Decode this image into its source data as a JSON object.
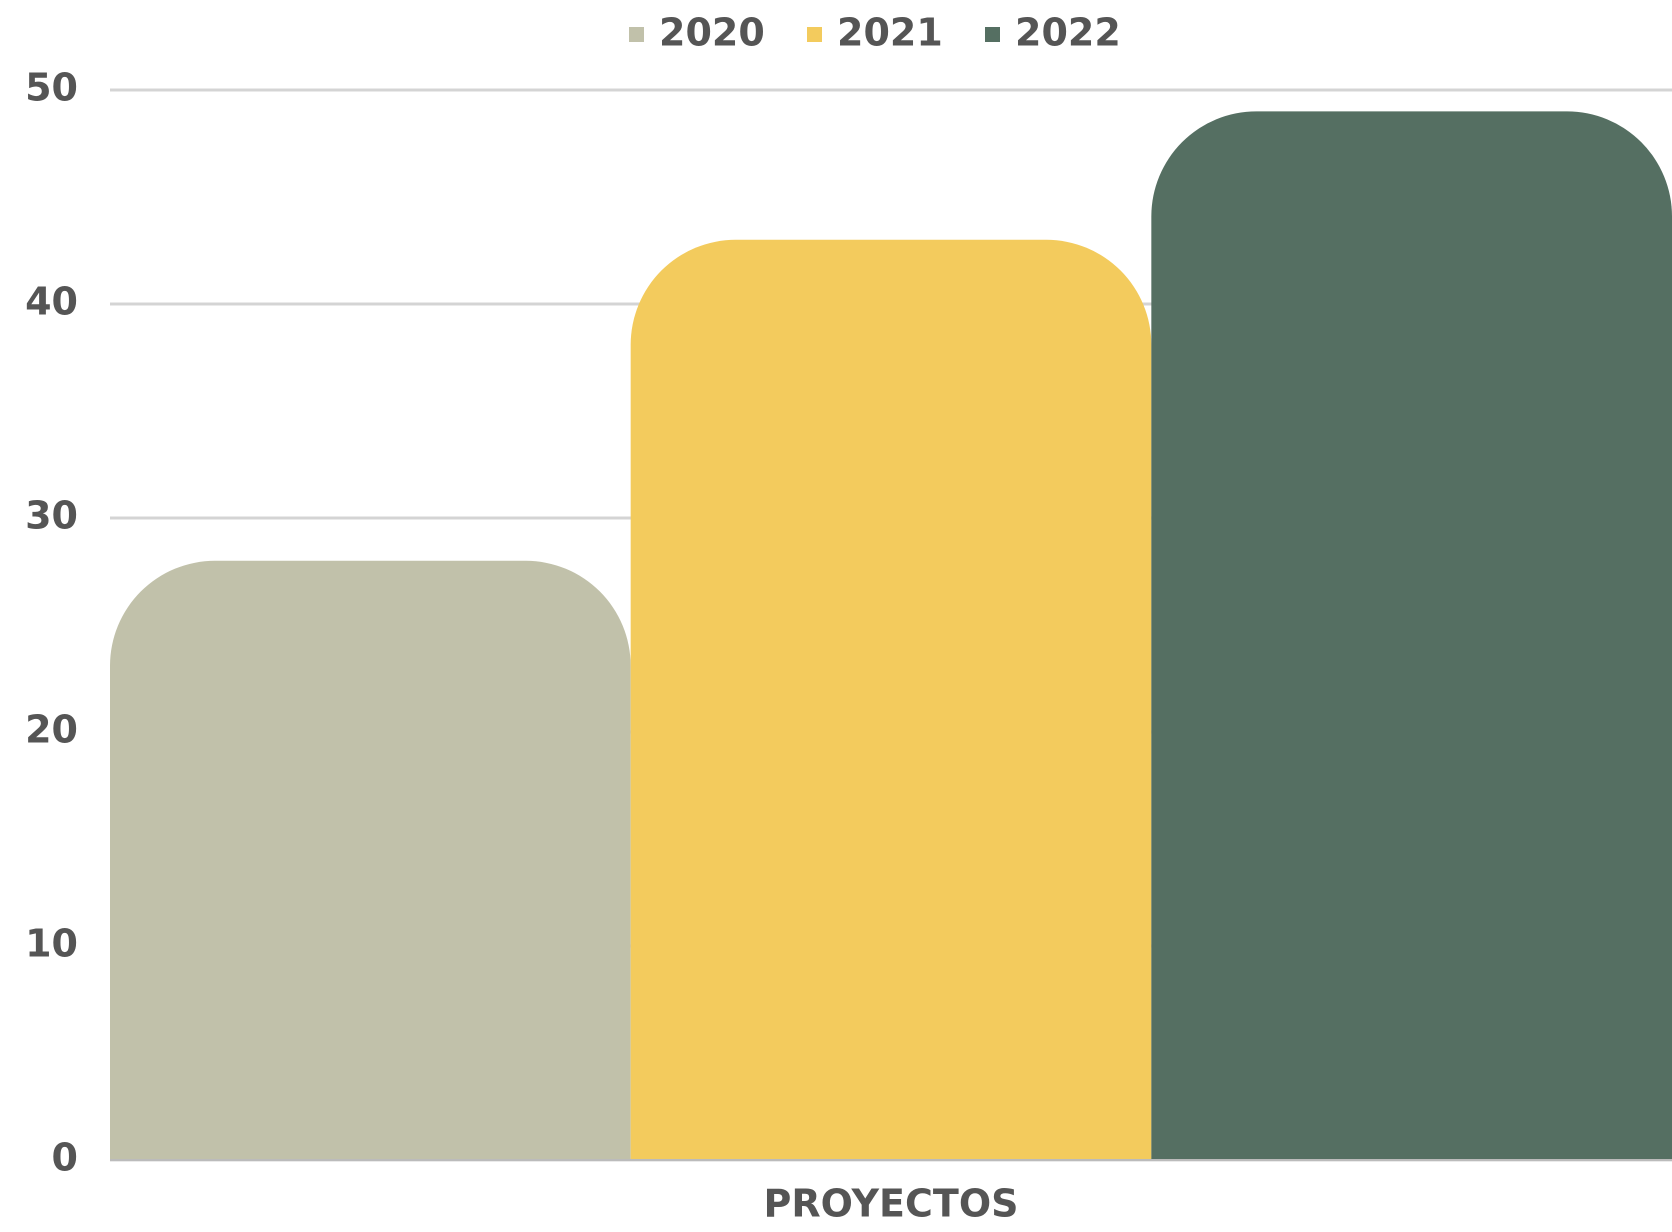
{
  "chart_data": {
    "type": "bar",
    "categories": [
      "PROYECTOS"
    ],
    "series": [
      {
        "name": "2020",
        "color": "#c1c1aa",
        "values": [
          28
        ]
      },
      {
        "name": "2021",
        "color": "#f3cb5d",
        "values": [
          43
        ]
      },
      {
        "name": "2022",
        "color": "#556f62",
        "values": [
          49
        ]
      }
    ],
    "ylim": [
      0,
      50
    ],
    "yticks": [
      0,
      10,
      20,
      30,
      40,
      50
    ],
    "grid": true,
    "legend": "top"
  }
}
